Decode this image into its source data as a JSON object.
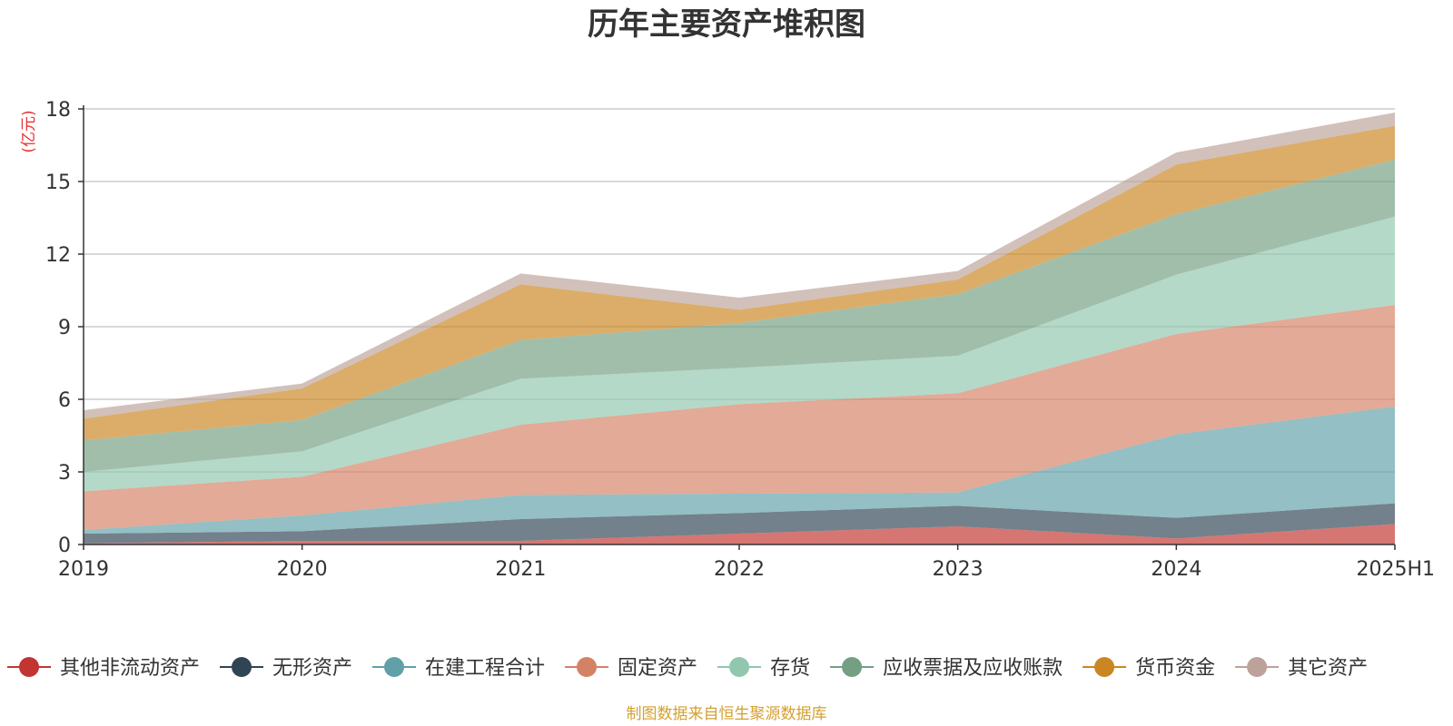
{
  "chart_data": {
    "type": "area",
    "stacked": true,
    "title": "历年主要资产堆积图",
    "unit_label": "(亿元)",
    "x": [
      "2019",
      "2020",
      "2021",
      "2022",
      "2023",
      "2024",
      "2025H1"
    ],
    "ylim": [
      0,
      18
    ],
    "yticks": [
      0,
      3,
      6,
      9,
      12,
      15,
      18
    ],
    "grid": true,
    "legend_position": "bottom",
    "series": [
      {
        "name": "其他非流动资产",
        "color": "#c23531",
        "values": [
          0.05,
          0.15,
          0.15,
          0.45,
          0.75,
          0.25,
          0.85
        ]
      },
      {
        "name": "无形资产",
        "color": "#2f4554",
        "values": [
          0.4,
          0.4,
          0.9,
          0.85,
          0.85,
          0.85,
          0.85
        ]
      },
      {
        "name": "在建工程合计",
        "color": "#61a0a8",
        "values": [
          0.15,
          0.65,
          1.0,
          0.8,
          0.55,
          3.45,
          4.0
        ]
      },
      {
        "name": "固定资产",
        "color": "#d48265",
        "values": [
          1.6,
          1.6,
          2.9,
          3.7,
          4.1,
          4.15,
          4.2
        ]
      },
      {
        "name": "存货",
        "color": "#91c7ae",
        "values": [
          0.8,
          1.05,
          1.9,
          1.5,
          1.55,
          2.45,
          3.65
        ]
      },
      {
        "name": "应收票据及应收账款",
        "color": "#749f83",
        "values": [
          1.3,
          1.3,
          1.6,
          1.85,
          2.55,
          2.5,
          2.35
        ]
      },
      {
        "name": "货币资金",
        "color": "#ca8622",
        "values": [
          0.9,
          1.3,
          2.3,
          0.55,
          0.6,
          2.05,
          1.4
        ]
      },
      {
        "name": "其它资产",
        "color": "#bda29a",
        "values": [
          0.35,
          0.2,
          0.45,
          0.5,
          0.35,
          0.5,
          0.55
        ]
      }
    ]
  },
  "source_text": "制图数据来自恒生聚源数据库",
  "colors": {
    "unit_label": "#e8302f",
    "source_text": "#d4a030",
    "grid": "#cccccc",
    "axis": "#333333"
  }
}
